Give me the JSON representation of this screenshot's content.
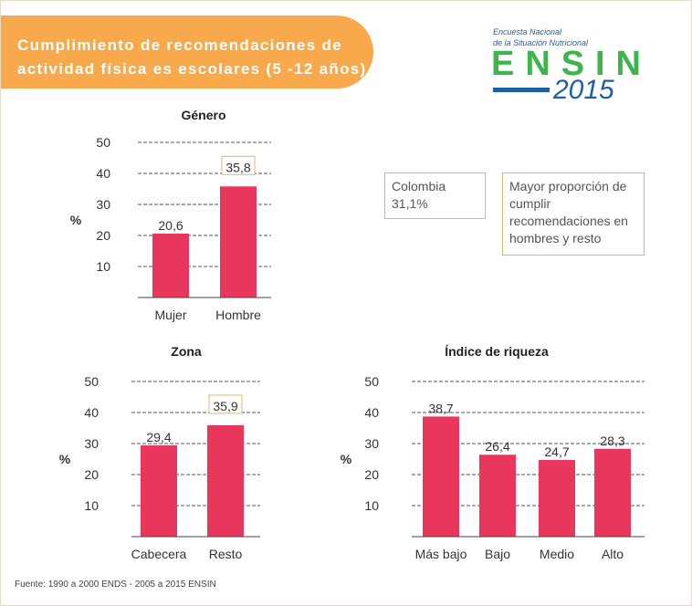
{
  "title": "Cumplimiento de recomendaciones de actividad física es escolares (5 -12 años)",
  "logo": {
    "line1": "Encuesta Nacional",
    "line2": "de la Situación Nutricional",
    "brand": "ENSIN",
    "year": "2015",
    "colors": {
      "green": "#3db54a",
      "blue": "#1f5fa8"
    }
  },
  "notes": {
    "colombia": "Colombia 31,1%",
    "summary": "Mayor proporción de cumplir recomendaciones en hombres y resto"
  },
  "footer": "Fuente: 1990 a 2000 ENDS - 2005 a 2015 ENSIN",
  "chart_data": [
    {
      "type": "bar",
      "title": "Género",
      "ylabel": "%",
      "yticks": [
        10,
        20,
        30,
        40,
        50
      ],
      "ylim": [
        0,
        50
      ],
      "grid": true,
      "categories": [
        "Mujer",
        "Hombre"
      ],
      "values": [
        20.6,
        35.8
      ],
      "value_labels": [
        "20,6",
        "35,8"
      ],
      "highlighted": [
        "Hombre"
      ],
      "bar_color": "#e8365d"
    },
    {
      "type": "bar",
      "title": "Zona",
      "ylabel": "%",
      "yticks": [
        10,
        20,
        30,
        40,
        50
      ],
      "ylim": [
        0,
        50
      ],
      "grid": true,
      "categories": [
        "Cabecera",
        "Resto"
      ],
      "values": [
        29.4,
        35.9
      ],
      "value_labels": [
        "29,4",
        "35,9"
      ],
      "highlighted": [
        "Resto"
      ],
      "bar_color": "#e8365d"
    },
    {
      "type": "bar",
      "title": "Índice de riqueza",
      "ylabel": "%",
      "yticks": [
        10,
        20,
        30,
        40,
        50
      ],
      "ylim": [
        0,
        50
      ],
      "grid": true,
      "categories": [
        "Más bajo",
        "Bajo",
        "Medio",
        "Alto"
      ],
      "values": [
        38.7,
        26.4,
        24.7,
        28.3
      ],
      "value_labels": [
        "38,7",
        "26,4",
        "24,7",
        "28,3"
      ],
      "highlighted": [],
      "bar_color": "#e8365d"
    }
  ]
}
